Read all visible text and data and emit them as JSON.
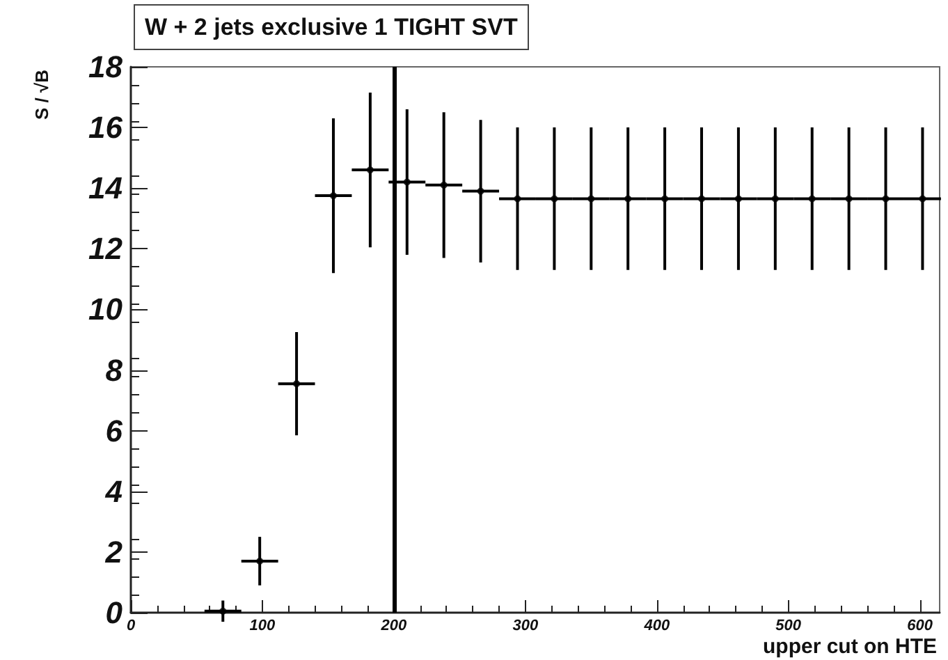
{
  "chart_data": {
    "type": "scatter",
    "title": "W + 2 jets exclusive 1 TIGHT SVT",
    "xlabel": "upper cut on HTE",
    "ylabel": "S / √B",
    "x": [
      70,
      98,
      126,
      154,
      182,
      210,
      238,
      266,
      294,
      322,
      350,
      378,
      406,
      434,
      462,
      490,
      518,
      546,
      574,
      602
    ],
    "series": [
      {
        "color": "#000000",
        "values": [
          0.05,
          1.7,
          7.55,
          13.75,
          14.6,
          14.2,
          14.1,
          13.9,
          13.65,
          13.65,
          13.65,
          13.65,
          13.65,
          13.65,
          13.65,
          13.65,
          13.65,
          13.65,
          13.65,
          13.65
        ],
        "errors": [
          0.35,
          0.8,
          1.7,
          2.55,
          2.55,
          2.4,
          2.4,
          2.35,
          2.35,
          2.35,
          2.35,
          2.35,
          2.35,
          2.35,
          2.35,
          2.35,
          2.35,
          2.35,
          2.35,
          2.35
        ],
        "xerrors": [
          14,
          14,
          14,
          14,
          14,
          14,
          14,
          14,
          14,
          14,
          14,
          14,
          14,
          14,
          14,
          14,
          14,
          14,
          14,
          14
        ]
      }
    ],
    "xlim": [
      0,
      615
    ],
    "xticks": [
      0,
      100,
      200,
      300,
      400,
      500,
      600
    ],
    "ylim": [
      0,
      18
    ],
    "yticks": [
      0,
      2,
      4,
      6,
      8,
      10,
      12,
      14,
      16,
      18
    ],
    "ref_lines": [
      {
        "axis": "x",
        "value": 200,
        "color": "#000000"
      }
    ],
    "marker": "circle",
    "grid": false
  }
}
